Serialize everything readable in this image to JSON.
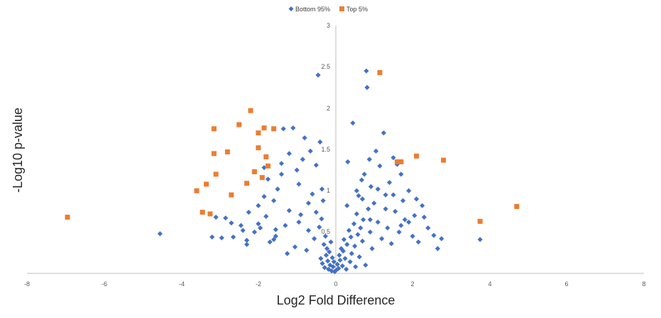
{
  "chart_data": {
    "type": "scatter",
    "title": "",
    "xlabel": "Log2 Fold Difference",
    "ylabel": "-Log10 p-value",
    "xlim": [
      -8,
      8
    ],
    "ylim": [
      0,
      3
    ],
    "xticks": [
      "-8",
      "-6",
      "-4",
      "-2",
      "0",
      "2",
      "4",
      "6",
      "8"
    ],
    "yticks": [
      "0.5",
      "1",
      "1.5",
      "2",
      "2.5",
      "3"
    ],
    "y_axis_crosses_x_at": 0,
    "grid": false,
    "legend_position": "top-center",
    "series": [
      {
        "name": "Bottom 95%",
        "color": "#4472C4",
        "marker": "diamond",
        "points": [
          [
            -4.55,
            0.48
          ],
          [
            -3.2,
            0.44
          ],
          [
            -3.1,
            0.68
          ],
          [
            -2.95,
            0.43
          ],
          [
            -2.85,
            0.67
          ],
          [
            -2.7,
            0.61
          ],
          [
            -2.65,
            0.44
          ],
          [
            -2.45,
            0.58
          ],
          [
            -2.4,
            0.52
          ],
          [
            -2.3,
            0.4
          ],
          [
            -2.3,
            0.35
          ],
          [
            -2.25,
            0.74
          ],
          [
            -2.1,
            0.5
          ],
          [
            -2.0,
            0.6
          ],
          [
            -2.0,
            0.82
          ],
          [
            -1.95,
            0.55
          ],
          [
            -1.85,
            0.93
          ],
          [
            -1.8,
            0.69
          ],
          [
            -1.75,
            1.14
          ],
          [
            -1.7,
            0.38
          ],
          [
            -1.6,
            0.41
          ],
          [
            -1.55,
            0.45
          ],
          [
            -1.55,
            0.53
          ],
          [
            -1.5,
            1.02
          ],
          [
            -1.4,
            1.2
          ],
          [
            -1.4,
            1.33
          ],
          [
            -1.35,
            1.75
          ],
          [
            -1.3,
            0.58
          ],
          [
            -1.25,
            0.24
          ],
          [
            -1.2,
            1.45
          ],
          [
            -1.1,
            1.76
          ],
          [
            -1.05,
            0.32
          ],
          [
            -1.0,
            1.25
          ],
          [
            -0.95,
            0.62
          ],
          [
            -0.9,
            0.71
          ],
          [
            -0.85,
            1.38
          ],
          [
            -0.8,
            1.64
          ],
          [
            -0.75,
            0.28
          ],
          [
            -0.7,
            0.85
          ],
          [
            -0.65,
            1.48
          ],
          [
            -0.6,
            0.96
          ],
          [
            -0.55,
            0.42
          ],
          [
            -0.5,
            1.31
          ],
          [
            -0.45,
            2.4
          ],
          [
            -0.42,
            0.56
          ],
          [
            -0.4,
            1.59
          ],
          [
            -0.38,
            0.18
          ],
          [
            -0.36,
            0.66
          ],
          [
            -0.34,
            0.12
          ],
          [
            -0.32,
            0.88
          ],
          [
            -0.3,
            0.35
          ],
          [
            -0.28,
            0.07
          ],
          [
            -0.26,
            0.45
          ],
          [
            -0.24,
            0.22
          ],
          [
            -0.22,
            0.3
          ],
          [
            -0.2,
            0.15
          ],
          [
            -0.18,
            0.05
          ],
          [
            -0.16,
            0.26
          ],
          [
            -0.14,
            0.1
          ],
          [
            -0.12,
            0.38
          ],
          [
            -0.1,
            0.03
          ],
          [
            -0.08,
            0.19
          ],
          [
            -0.06,
            0.08
          ],
          [
            -0.04,
            0.14
          ],
          [
            -0.02,
            0.02
          ],
          [
            0.02,
            0.04
          ],
          [
            0.05,
            0.11
          ],
          [
            0.08,
            0.06
          ],
          [
            0.1,
            0.22
          ],
          [
            0.12,
            0.16
          ],
          [
            0.15,
            0.3
          ],
          [
            0.18,
            0.09
          ],
          [
            0.2,
            0.27
          ],
          [
            0.22,
            0.41
          ],
          [
            0.25,
            0.18
          ],
          [
            0.28,
            0.05
          ],
          [
            0.3,
            0.35
          ],
          [
            0.32,
            1.35
          ],
          [
            0.35,
            0.52
          ],
          [
            0.38,
            0.14
          ],
          [
            0.4,
            0.44
          ],
          [
            0.42,
            0.24
          ],
          [
            0.45,
            1.82
          ],
          [
            0.48,
            0.6
          ],
          [
            0.5,
            0.33
          ],
          [
            0.52,
            0.08
          ],
          [
            0.55,
            0.72
          ],
          [
            0.58,
            0.47
          ],
          [
            0.6,
            0.94
          ],
          [
            0.62,
            0.2
          ],
          [
            0.65,
            0.55
          ],
          [
            0.68,
            1.13
          ],
          [
            0.7,
            0.39
          ],
          [
            0.72,
            0.65
          ],
          [
            0.75,
            1.2
          ],
          [
            0.78,
            0.1
          ],
          [
            0.8,
            2.45
          ],
          [
            0.82,
            2.25
          ],
          [
            0.85,
            0.78
          ],
          [
            0.88,
            1.38
          ],
          [
            0.9,
            0.5
          ],
          [
            0.92,
            1.05
          ],
          [
            0.95,
            0.3
          ],
          [
            1.0,
            0.85
          ],
          [
            1.05,
            1.48
          ],
          [
            1.1,
            0.62
          ],
          [
            1.15,
            1.3
          ],
          [
            1.2,
            0.42
          ],
          [
            1.25,
            1.7
          ],
          [
            1.3,
            0.95
          ],
          [
            1.35,
            0.55
          ],
          [
            1.4,
            1.1
          ],
          [
            1.45,
            0.36
          ],
          [
            1.5,
            1.4
          ],
          [
            1.55,
            0.75
          ],
          [
            1.6,
            1.32
          ],
          [
            1.65,
            0.5
          ],
          [
            1.7,
            1.2
          ],
          [
            1.75,
            0.88
          ],
          [
            1.8,
            0.65
          ],
          [
            1.9,
            1.0
          ],
          [
            2.0,
            0.45
          ],
          [
            2.05,
            0.7
          ],
          [
            2.15,
            0.38
          ],
          [
            2.25,
            0.82
          ],
          [
            2.4,
            0.55
          ],
          [
            2.55,
            0.46
          ],
          [
            2.65,
            0.3
          ],
          [
            2.75,
            0.42
          ],
          [
            3.75,
            0.41
          ],
          [
            -1.85,
            1.28
          ],
          [
            -1.6,
            0.88
          ],
          [
            -1.2,
            0.76
          ],
          [
            -0.95,
            1.08
          ],
          [
            -0.7,
            0.52
          ],
          [
            -0.5,
            0.74
          ],
          [
            -0.35,
            1.02
          ],
          [
            0.3,
            0.82
          ],
          [
            0.55,
            1.0
          ],
          [
            0.7,
            0.9
          ],
          [
            0.9,
            0.65
          ],
          [
            1.1,
            1.02
          ],
          [
            1.3,
            0.78
          ],
          [
            1.5,
            0.95
          ],
          [
            1.7,
            0.58
          ],
          [
            1.9,
            0.62
          ],
          [
            2.1,
            0.9
          ],
          [
            2.3,
            0.68
          ]
        ]
      },
      {
        "name": "Top 5%",
        "color": "#ED7D31",
        "marker": "square",
        "points": [
          [
            -6.95,
            0.68
          ],
          [
            -3.6,
            1.0
          ],
          [
            -3.45,
            0.74
          ],
          [
            -3.35,
            1.08
          ],
          [
            -3.25,
            0.72
          ],
          [
            -3.15,
            1.75
          ],
          [
            -3.15,
            1.45
          ],
          [
            -3.1,
            1.2
          ],
          [
            -2.8,
            1.47
          ],
          [
            -2.7,
            0.95
          ],
          [
            -2.5,
            1.8
          ],
          [
            -2.3,
            1.09
          ],
          [
            -2.2,
            1.97
          ],
          [
            -2.1,
            1.23
          ],
          [
            -2.0,
            1.7
          ],
          [
            -2.0,
            1.52
          ],
          [
            -1.9,
            1.16
          ],
          [
            -1.85,
            1.76
          ],
          [
            -1.8,
            1.41
          ],
          [
            -1.75,
            1.3
          ],
          [
            -1.6,
            1.75
          ],
          [
            1.15,
            2.43
          ],
          [
            1.6,
            1.35
          ],
          [
            1.7,
            1.35
          ],
          [
            2.1,
            1.42
          ],
          [
            2.8,
            1.37
          ],
          [
            3.75,
            0.63
          ],
          [
            4.7,
            0.81
          ]
        ]
      }
    ]
  }
}
